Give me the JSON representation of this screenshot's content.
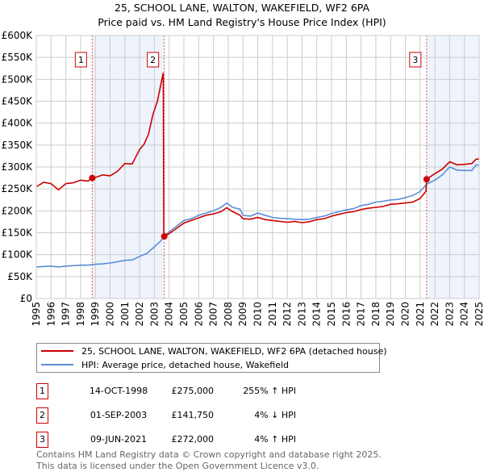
{
  "title": "25, SCHOOL LANE, WALTON, WAKEFIELD, WF2 6PA",
  "subtitle": "Price paid vs. HM Land Registry's House Price Index (HPI)",
  "colors": {
    "property": "#cc0000",
    "hpi": "#5b8fd6",
    "shade": "#eef3fc",
    "grid": "#cccccc"
  },
  "chart_data": {
    "type": "line",
    "xlim": [
      1995,
      2025
    ],
    "ylim": [
      0,
      600000
    ],
    "x_ticks": [
      "1995",
      "1996",
      "1997",
      "1998",
      "1999",
      "2000",
      "2001",
      "2002",
      "2003",
      "2004",
      "2005",
      "2006",
      "2007",
      "2008",
      "2009",
      "2010",
      "2011",
      "2012",
      "2013",
      "2014",
      "2015",
      "2016",
      "2017",
      "2018",
      "2019",
      "2020",
      "2021",
      "2022",
      "2023",
      "2024",
      "2025"
    ],
    "y_ticks": [
      {
        "v": 0,
        "l": "£0"
      },
      {
        "v": 50000,
        "l": "£50K"
      },
      {
        "v": 100000,
        "l": "£100K"
      },
      {
        "v": 150000,
        "l": "£150K"
      },
      {
        "v": 200000,
        "l": "£200K"
      },
      {
        "v": 250000,
        "l": "£250K"
      },
      {
        "v": 300000,
        "l": "£300K"
      },
      {
        "v": 350000,
        "l": "£350K"
      },
      {
        "v": 400000,
        "l": "£400K"
      },
      {
        "v": 450000,
        "l": "£450K"
      },
      {
        "v": 500000,
        "l": "£500K"
      },
      {
        "v": 550000,
        "l": "£550K"
      },
      {
        "v": 600000,
        "l": "£600K"
      }
    ],
    "shaded": [
      [
        1998.79,
        2003.67
      ],
      [
        2021.44,
        2025
      ]
    ],
    "series": [
      {
        "name": "25, SCHOOL LANE, WALTON, WAKEFIELD, WF2 6PA (detached house)",
        "color": "#cc0000",
        "x": [
          1995,
          1995.5,
          1996,
          1996.5,
          1997,
          1997.5,
          1998,
          1998.5,
          1998.79,
          1999,
          1999.5,
          2000,
          2000.5,
          2001,
          2001.5,
          2002,
          2002.3,
          2002.6,
          2002.9,
          2003.2,
          2003.6,
          2003.64,
          2003.67,
          2004,
          2004.5,
          2005,
          2005.5,
          2006,
          2006.5,
          2007,
          2007.5,
          2007.9,
          2008.3,
          2008.8,
          2009,
          2009.5,
          2010,
          2010.5,
          2011,
          2011.5,
          2012,
          2012.5,
          2013,
          2013.5,
          2014,
          2014.5,
          2015,
          2015.5,
          2016,
          2016.5,
          2017,
          2017.5,
          2018,
          2018.5,
          2019,
          2019.5,
          2020,
          2020.5,
          2021,
          2021.4,
          2021.44,
          2022,
          2022.5,
          2023,
          2023.5,
          2024,
          2024.5,
          2024.8,
          2025
        ],
        "y": [
          255000,
          265000,
          262000,
          248000,
          262000,
          264000,
          270000,
          268000,
          275000,
          276000,
          282000,
          280000,
          290000,
          308000,
          307000,
          340000,
          352000,
          375000,
          420000,
          450000,
          515000,
          142000,
          141750,
          148000,
          160000,
          172000,
          178000,
          184000,
          190000,
          193000,
          198000,
          207000,
          198000,
          190000,
          182000,
          181000,
          185000,
          180000,
          178000,
          176000,
          174000,
          176000,
          173000,
          175000,
          180000,
          182000,
          188000,
          192000,
          196000,
          198000,
          203000,
          206000,
          208000,
          210000,
          215000,
          216000,
          218000,
          220000,
          228000,
          245000,
          272000,
          285000,
          295000,
          312000,
          305000,
          306000,
          308000,
          318000,
          318000
        ]
      },
      {
        "name": "HPI: Average price, detached house, Wakefield",
        "color": "#5b8fd6",
        "x": [
          1995,
          1995.5,
          1996,
          1996.5,
          1997,
          1997.5,
          1998,
          1998.5,
          1999,
          1999.5,
          2000,
          2000.5,
          2001,
          2001.5,
          2002,
          2002.5,
          2003,
          2003.4,
          2003.67,
          2004,
          2004.5,
          2005,
          2005.5,
          2006,
          2006.5,
          2007,
          2007.5,
          2007.9,
          2008.3,
          2008.8,
          2009,
          2009.5,
          2010,
          2010.5,
          2011,
          2011.5,
          2012,
          2012.5,
          2013,
          2013.5,
          2014,
          2014.5,
          2015,
          2015.5,
          2016,
          2016.5,
          2017,
          2017.5,
          2018,
          2018.5,
          2019,
          2019.5,
          2020,
          2020.5,
          2021,
          2021.44,
          2022,
          2022.5,
          2023,
          2023.5,
          2024,
          2024.5,
          2024.8,
          2025
        ],
        "y": [
          72000,
          73000,
          74000,
          72000,
          74000,
          75000,
          76000,
          76000,
          78000,
          79000,
          81000,
          84000,
          87000,
          88000,
          96000,
          103000,
          118000,
          130000,
          143000,
          152000,
          165000,
          178000,
          182000,
          190000,
          195000,
          200000,
          208000,
          218000,
          208000,
          204000,
          190000,
          188000,
          195000,
          190000,
          185000,
          183000,
          182000,
          181000,
          180000,
          181000,
          185000,
          188000,
          194000,
          198000,
          202000,
          205000,
          212000,
          215000,
          220000,
          222000,
          225000,
          226000,
          230000,
          235000,
          244000,
          261000,
          270000,
          282000,
          300000,
          293000,
          292000,
          292000,
          305000,
          304000
        ]
      }
    ],
    "sales": [
      {
        "n": "1",
        "x": 1998.79,
        "y": 275000
      },
      {
        "n": "2",
        "x": 2003.67,
        "y": 141750
      },
      {
        "n": "3",
        "x": 2021.44,
        "y": 272000
      }
    ]
  },
  "legend": [
    {
      "label": "25, SCHOOL LANE, WALTON, WAKEFIELD, WF2 6PA (detached house)"
    },
    {
      "label": "HPI: Average price, detached house, Wakefield"
    }
  ],
  "transactions": [
    {
      "n": "1",
      "date": "14-OCT-1998",
      "price": "£275,000",
      "hpi": "255% ↑ HPI"
    },
    {
      "n": "2",
      "date": "01-SEP-2003",
      "price": "£141,750",
      "hpi": "4% ↓ HPI"
    },
    {
      "n": "3",
      "date": "09-JUN-2021",
      "price": "£272,000",
      "hpi": "4% ↑ HPI"
    }
  ],
  "footer": {
    "line1": "Contains HM Land Registry data © Crown copyright and database right 2025.",
    "line2": "This data is licensed under the Open Government Licence v3.0."
  }
}
